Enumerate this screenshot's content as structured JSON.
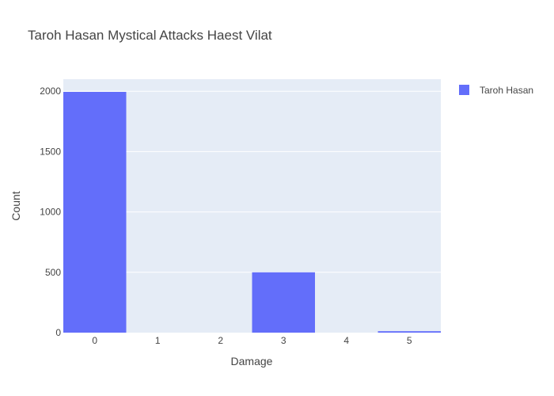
{
  "chart_data": {
    "type": "bar",
    "title": "Taroh Hasan Mystical Attacks Haest Vilat",
    "xlabel": "Damage",
    "ylabel": "Count",
    "categories": [
      "0",
      "1",
      "2",
      "3",
      "4",
      "5"
    ],
    "series": [
      {
        "name": "Taroh Hasan",
        "values": [
          1995,
          0,
          0,
          500,
          0,
          12
        ],
        "color": "#636efa"
      }
    ],
    "ylim": [
      0,
      2100
    ],
    "yticks": [
      0,
      500,
      1000,
      1500,
      2000
    ],
    "yticklabels": [
      "0",
      "500",
      "1000",
      "1500",
      "2000"
    ],
    "grid": true,
    "legend_position": "top-right",
    "plot_background": "#e5ecf6"
  }
}
